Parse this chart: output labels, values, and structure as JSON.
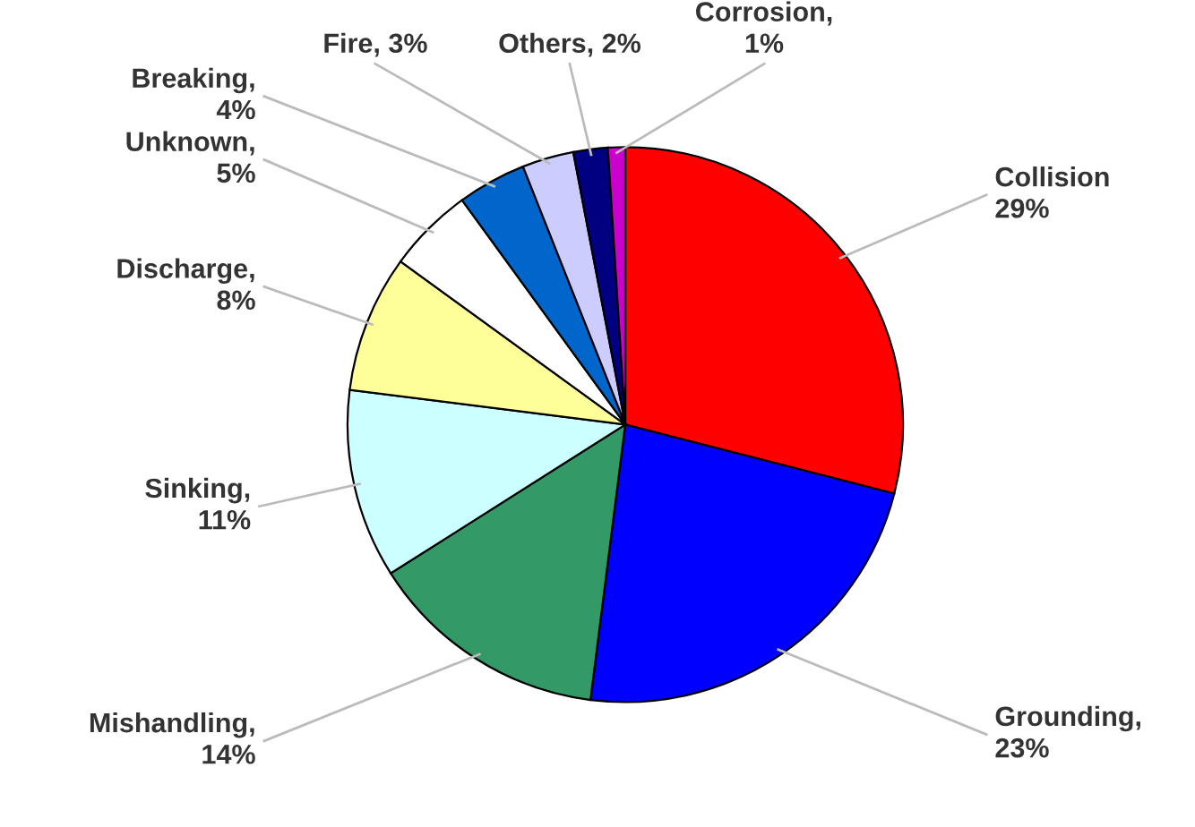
{
  "chart_data": {
    "type": "pie",
    "categories": [
      "Collision\n29%",
      "Grounding,\n23%",
      "Mishandling,\n14%",
      "Sinking,\n11%",
      "Discharge,\n8%",
      "Unknown,\n5%",
      "Breaking,\n4%",
      "Fire, 3%",
      "Others, 2%",
      "Corrosion,\n1%"
    ],
    "values": [
      29,
      23,
      14,
      11,
      8,
      5,
      4,
      3,
      2,
      1
    ],
    "colors": [
      "#ff0000",
      "#0000ff",
      "#339966",
      "#ccffff",
      "#ffff99",
      "#ffffff",
      "#0066cc",
      "#ccccff",
      "#000080",
      "#cc00cc"
    ]
  }
}
